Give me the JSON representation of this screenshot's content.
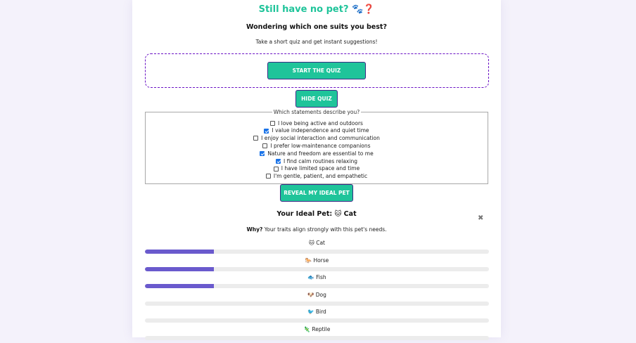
{
  "colors": {
    "accent": "#1fc49a",
    "bar_fill": "#6a5acd",
    "border_purple": "#6a12c4"
  },
  "header": {
    "title": "Still have no pet?",
    "title_emoji": "🐾❓",
    "subtitle": "Wondering which one suits you best?",
    "tagline": "Take a short quiz and get instant suggestions!"
  },
  "buttons": {
    "start": "START THE QUIZ",
    "hide": "HIDE QUIZ",
    "reveal": "REVEAL MY IDEAL PET"
  },
  "quiz": {
    "legend": "Which statements describe you?",
    "options": [
      {
        "label": "I love being active and outdoors",
        "checked": false
      },
      {
        "label": "I value independence and quiet time",
        "checked": true
      },
      {
        "label": "I enjoy social interaction and communication",
        "checked": false
      },
      {
        "label": "I prefer low-maintenance companions",
        "checked": false
      },
      {
        "label": "Nature and freedom are essential to me",
        "checked": true
      },
      {
        "label": "I find calm routines relaxing",
        "checked": true
      },
      {
        "label": "I have limited space and time",
        "checked": false
      },
      {
        "label": "I'm gentle, patient, and empathetic",
        "checked": false
      }
    ]
  },
  "result": {
    "title": "Your Ideal Pet: 🐱 Cat",
    "close_icon": "✖",
    "why_label": "Why?",
    "why_text": "Your traits align strongly with this pet's needs.",
    "scores": [
      {
        "label": "🐱 Cat",
        "fraction": 0.2
      },
      {
        "label": "🐎 Horse",
        "fraction": 0.2
      },
      {
        "label": "🐟 Fish",
        "fraction": 0.2
      },
      {
        "label": "🐶 Dog",
        "fraction": 0
      },
      {
        "label": "🐦 Bird",
        "fraction": 0
      },
      {
        "label": "🦎 Reptile",
        "fraction": 0
      }
    ]
  }
}
